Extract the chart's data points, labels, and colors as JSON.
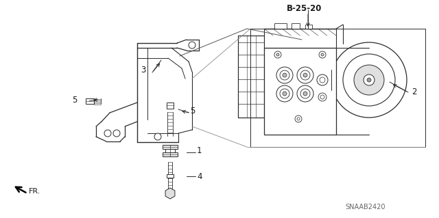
{
  "bg_color": "#ffffff",
  "title_ref": "B-25-20",
  "part_label_2": "2",
  "part_label_3": "3",
  "part_label_4": "4",
  "part_label_5a": "5",
  "part_label_5b": "5",
  "part_label_1": "1",
  "fr_label": "FR.",
  "catalog_code": "SNAAB2420",
  "line_color": "#2a2a2a",
  "text_color": "#1a1a1a",
  "gray_color": "#666666",
  "light_gray": "#aaaaaa",
  "mid_gray": "#888888"
}
